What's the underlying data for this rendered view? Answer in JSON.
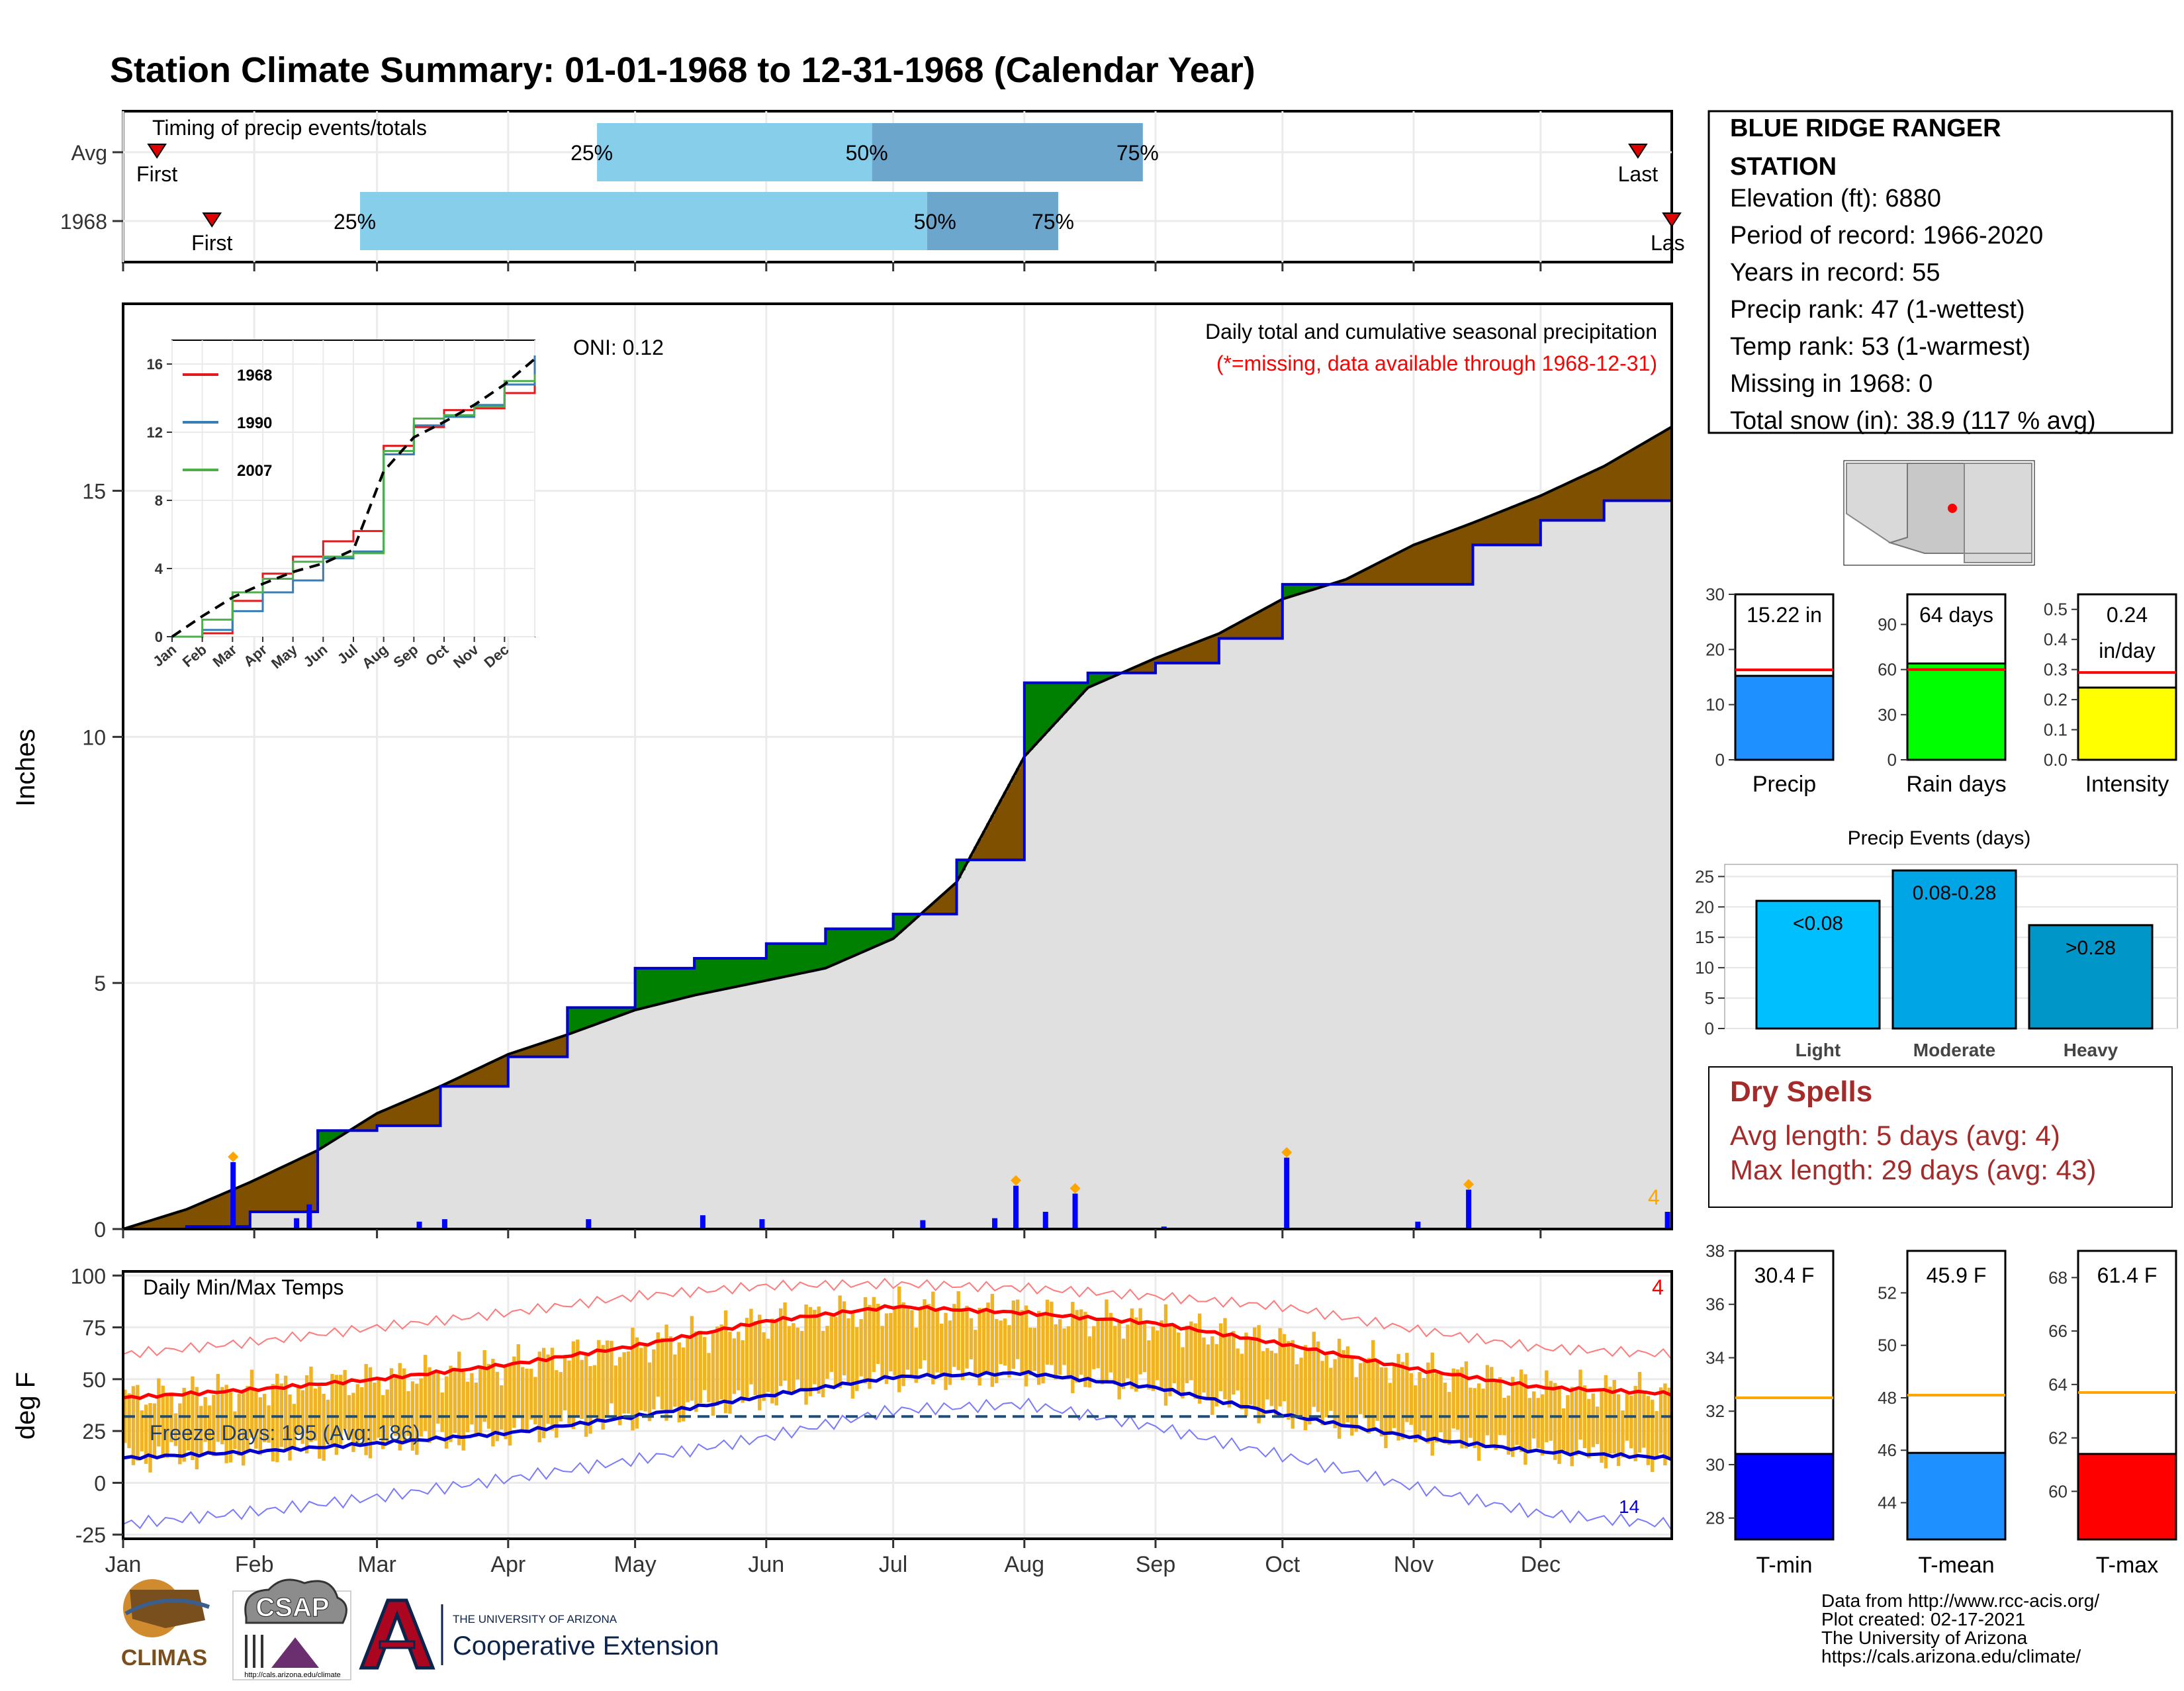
{
  "title": "Station Climate Summary: 01-01-1968 to 12-31-1968 (Calendar Year)",
  "timing": {
    "label": "Timing of precip events/totals",
    "rows": [
      {
        "name": "Avg",
        "first_doy": 8,
        "q25_doy": 112,
        "q50_doy": 177,
        "q75_doy": 241,
        "last_doy": 358
      },
      {
        "name": "1968",
        "first_doy": 21,
        "q25_doy": 56,
        "q50_doy": 190,
        "q75_doy": 221,
        "last_doy": 366
      }
    ],
    "first_label": "First",
    "last_label": "Last",
    "last_label_cut": "Las",
    "q25_label": "25%",
    "q50_label": "50%",
    "q75_label": "75%"
  },
  "colors": {
    "quartile_light": "#87CEEB",
    "quartile_dark": "#6CA6CD",
    "above_avg": "#008000",
    "below_avg": "#7F5000",
    "climo_fill": "#E0E0E0",
    "daily_precip": "#0000FF",
    "tmax": "#FF0000",
    "tmin": "#0000CD",
    "temp_bars": "#F0B323",
    "precip_bar": "#1E90FF",
    "raindays_bar": "#00FF00",
    "intensity_bar": "#FFFF00",
    "light_bar": "#00BFFF",
    "moderate_bar": "#00A5E6",
    "heavy_bar": "#0097C8",
    "dry_spell_text": "#A52A2A",
    "title_text": "#000080"
  },
  "main_panel": {
    "ylabel": "Inches",
    "oni": "ONI: 0.12",
    "note1": "Daily total and cumulative seasonal precipitation",
    "note2": "(*=missing, data available through 1968-12-31)",
    "yticks": [
      "0",
      "5",
      "10",
      "15"
    ],
    "extreme_count": "4"
  },
  "inset": {
    "xticks": [
      "Jan",
      "Feb",
      "Mar",
      "Apr",
      "May",
      "Jun",
      "Jul",
      "Aug",
      "Sep",
      "Oct",
      "Nov",
      "Dec"
    ],
    "yticks": [
      "0",
      "4",
      "8",
      "12",
      "16"
    ],
    "legend": [
      {
        "name": "1968",
        "color": "#E41A1C"
      },
      {
        "name": "1990",
        "color": "#377EB8"
      },
      {
        "name": "2007",
        "color": "#4DAF4A"
      }
    ]
  },
  "temp_panel": {
    "ylabel": "deg F",
    "title": "Daily Min/Max Temps",
    "freeze": "Freeze Days: 195 (Avg: 186)",
    "yticks": [
      "-25",
      "0",
      "25",
      "50",
      "75",
      "100"
    ],
    "record_count": "4",
    "low_count": "14",
    "months": [
      "Jan",
      "Feb",
      "Mar",
      "Apr",
      "May",
      "Jun",
      "Jul",
      "Aug",
      "Sep",
      "Oct",
      "Nov",
      "Dec"
    ]
  },
  "station": {
    "name1": "BLUE RIDGE RANGER",
    "name2": "STATION",
    "lines": [
      "Elevation (ft): 6880",
      "Period of record: 1966-2020",
      "Years in record: 55",
      "Precip rank: 47 (1-wettest)",
      "Temp rank: 53 (1-warmest)",
      "Missing in 1968: 0",
      "Total snow (in): 38.9 (117 % avg)"
    ]
  },
  "mini_bars": [
    {
      "label": "Precip",
      "value_text": "15.22 in",
      "value": 15.22,
      "avg": 16.3,
      "ymax": 30,
      "yticks": [
        "0",
        "10",
        "20",
        "30"
      ]
    },
    {
      "label": "Rain days",
      "value_text": "64 days",
      "value": 64,
      "avg": 60,
      "ymax": 110,
      "yticks": [
        "0",
        "30",
        "60",
        "90"
      ]
    },
    {
      "label": "Intensity",
      "value_text": "0.24",
      "value_text2": "in/day",
      "value": 0.24,
      "avg": 0.29,
      "ymax": 0.55,
      "yticks": [
        "0.0",
        "0.1",
        "0.2",
        "0.3",
        "0.4",
        "0.5"
      ]
    }
  ],
  "precip_events": {
    "title": "Precip Events (days)",
    "yticks": [
      "0",
      "5",
      "10",
      "15",
      "20",
      "25"
    ],
    "bars": [
      {
        "label": "Light",
        "inner": "<0.08",
        "value": 21
      },
      {
        "label": "Moderate",
        "inner": "0.08-0.28",
        "value": 26
      },
      {
        "label": "Heavy",
        "inner": ">0.28",
        "value": 17
      }
    ]
  },
  "dry_spells": {
    "title": "Dry Spells",
    "avg": "Avg length: 5 days (avg: 4)",
    "max": "Max length: 29 days (avg: 43)"
  },
  "temp_bars": [
    {
      "label": "T-min",
      "value_text": "30.4 F",
      "value": 30.4,
      "avg": 32.5,
      "ymin": 27.2,
      "ymax": 38.0,
      "yticks": [
        "28",
        "30",
        "32",
        "34",
        "36",
        "38"
      ]
    },
    {
      "label": "T-mean",
      "value_text": "45.9 F",
      "value": 45.9,
      "avg": 48.1,
      "ymin": 42.6,
      "ymax": 53.6,
      "yticks": [
        "44",
        "46",
        "48",
        "50",
        "52"
      ]
    },
    {
      "label": "T-max",
      "value_text": "61.4 F",
      "value": 61.4,
      "avg": 63.7,
      "ymin": 58.2,
      "ymax": 69.0,
      "yticks": [
        "60",
        "62",
        "64",
        "66",
        "68"
      ]
    }
  ],
  "credits": [
    "Data from http://www.rcc-acis.org/",
    "Plot created: 02-17-2021",
    "The University of Arizona",
    "https://cals.arizona.edu/climate/"
  ],
  "logos": {
    "climas": "CLIMAS",
    "csap": "CSAP",
    "csap_url": "http://cals.arizona.edu/climate",
    "ua_small": "THE UNIVERSITY OF ARIZONA",
    "ua_big": "Cooperative Extension"
  },
  "chart_data": [
    {
      "type": "line",
      "title": "Daily total and cumulative seasonal precipitation",
      "ylabel": "Inches",
      "xlabel": "",
      "ylim": [
        0,
        18.8
      ],
      "x": [
        0,
        15,
        30,
        46,
        60,
        75,
        91,
        105,
        121,
        135,
        152,
        166,
        182,
        197,
        213,
        228,
        244,
        259,
        274,
        289,
        305,
        319,
        335,
        350,
        366
      ],
      "series": [
        {
          "name": "Avg cumulative",
          "values": [
            0,
            0.4,
            0.95,
            1.6,
            2.35,
            2.9,
            3.55,
            3.95,
            4.45,
            4.75,
            5.05,
            5.3,
            5.9,
            7.05,
            9.6,
            11.0,
            11.6,
            12.1,
            12.8,
            13.2,
            13.9,
            14.35,
            14.9,
            15.5,
            16.3
          ]
        },
        {
          "name": "1968 cumulative",
          "values": [
            0,
            0.05,
            0.35,
            2.0,
            2.1,
            2.9,
            3.5,
            4.5,
            5.3,
            5.5,
            5.8,
            6.1,
            6.4,
            7.5,
            11.1,
            11.3,
            11.5,
            12.0,
            13.1,
            13.1,
            13.1,
            13.9,
            14.4,
            14.8,
            15.22
          ]
        }
      ],
      "daily_precip_events": [
        {
          "day": 26,
          "in": 1.36
        },
        {
          "day": 41,
          "in": 0.22
        },
        {
          "day": 44,
          "in": 0.5
        },
        {
          "day": 70,
          "in": 0.15
        },
        {
          "day": 76,
          "in": 0.2
        },
        {
          "day": 110,
          "in": 0.2
        },
        {
          "day": 137,
          "in": 0.28
        },
        {
          "day": 151,
          "in": 0.2
        },
        {
          "day": 189,
          "in": 0.18
        },
        {
          "day": 206,
          "in": 0.22
        },
        {
          "day": 211,
          "in": 0.88
        },
        {
          "day": 218,
          "in": 0.35
        },
        {
          "day": 225,
          "in": 0.72
        },
        {
          "day": 246,
          "in": 0.05
        },
        {
          "day": 275,
          "in": 1.45
        },
        {
          "day": 306,
          "in": 0.15
        },
        {
          "day": 318,
          "in": 0.8
        },
        {
          "day": 365,
          "in": 0.35
        }
      ]
    },
    {
      "type": "line",
      "title": "",
      "xlabel": "",
      "ylabel": "",
      "x": [
        "Jan",
        "Feb",
        "Mar",
        "Apr",
        "May",
        "Jun",
        "Jul",
        "Aug",
        "Sep",
        "Oct",
        "Nov",
        "Dec",
        "Dec31"
      ],
      "ylim": [
        0,
        17
      ],
      "series": [
        {
          "name": "1968",
          "values": [
            0,
            0.2,
            2.1,
            3.7,
            4.7,
            5.6,
            6.2,
            11.2,
            12.3,
            13.3,
            13.4,
            14.3,
            15.2
          ]
        },
        {
          "name": "1990",
          "values": [
            0,
            0.4,
            1.5,
            2.6,
            3.3,
            4.6,
            5.0,
            10.7,
            12.4,
            12.9,
            13.6,
            14.8,
            16.5
          ]
        },
        {
          "name": "2007",
          "values": [
            0,
            1.0,
            2.6,
            3.4,
            4.4,
            4.7,
            4.9,
            10.9,
            12.8,
            13.0,
            13.5,
            15.0,
            15.4
          ]
        },
        {
          "name": "Avg",
          "values": [
            0,
            1.2,
            2.3,
            3.1,
            3.8,
            4.3,
            5.1,
            9.7,
            11.7,
            12.6,
            13.6,
            14.8,
            16.3
          ]
        }
      ]
    },
    {
      "type": "line",
      "title": "Daily Min/Max Temps",
      "ylabel": "deg F",
      "xlabel": "",
      "ylim": [
        -27,
        102
      ],
      "x": [
        0,
        31,
        60,
        91,
        121,
        152,
        182,
        213,
        244,
        274,
        305,
        335,
        366
      ],
      "series": [
        {
          "name": "Normal Tmax",
          "values": [
            41,
            45,
            50,
            57,
            66,
            78,
            85,
            82,
            77,
            67,
            55,
            46,
            43
          ]
        },
        {
          "name": "Normal Tmin",
          "values": [
            12,
            15,
            19,
            24,
            32,
            42,
            51,
            53,
            46,
            33,
            22,
            15,
            12
          ]
        },
        {
          "name": "Record Tmax",
          "values": [
            62,
            68,
            75,
            82,
            90,
            95,
            96,
            94,
            90,
            85,
            74,
            65,
            62
          ]
        },
        {
          "name": "Record Tmin",
          "values": [
            -20,
            -14,
            -7,
            2,
            11,
            22,
            35,
            38,
            27,
            13,
            -2,
            -15,
            -20
          ]
        }
      ],
      "freeze_line": 32
    }
  ]
}
